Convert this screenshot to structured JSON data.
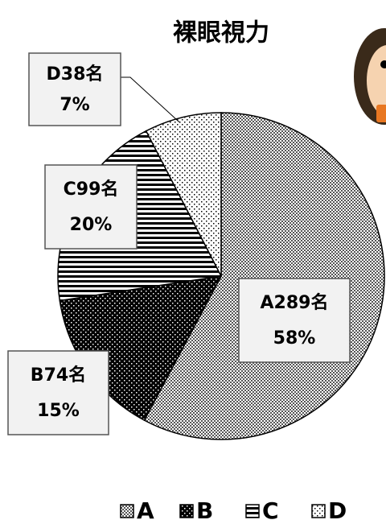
{
  "chart_data": {
    "type": "pie",
    "title": "裸眼視力",
    "categories": [
      "A",
      "B",
      "C",
      "D"
    ],
    "values": [
      289,
      74,
      99,
      38
    ],
    "value_labels": [
      "A289名",
      "B74名",
      "C99名",
      "D38名"
    ],
    "percent_labels": [
      "58%",
      "15%",
      "20%",
      "7%"
    ],
    "legend": "bottom"
  }
}
